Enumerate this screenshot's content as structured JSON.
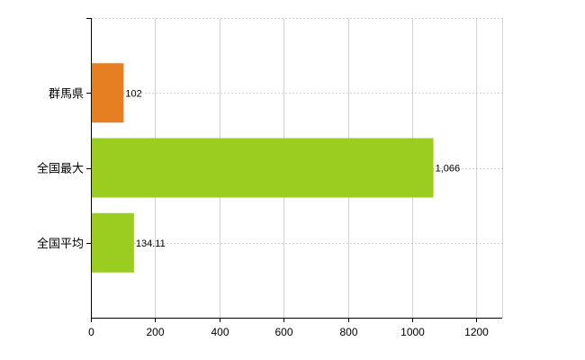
{
  "chart_data": {
    "type": "bar",
    "orientation": "horizontal",
    "categories": [
      "群馬県",
      "全国最大",
      "全国平均"
    ],
    "values": [
      102,
      1066,
      134.11
    ],
    "value_labels": [
      "102",
      "1,066",
      "134.11"
    ],
    "colors": [
      "#e67e22",
      "#9acd1f",
      "#9acd1f"
    ],
    "xlim": [
      0,
      1280
    ],
    "xticks": [
      0,
      200,
      400,
      600,
      800,
      1000,
      1200
    ],
    "xtick_labels": [
      "0",
      "200",
      "400",
      "600",
      "800",
      "1000",
      "1200"
    ],
    "grid": true
  }
}
